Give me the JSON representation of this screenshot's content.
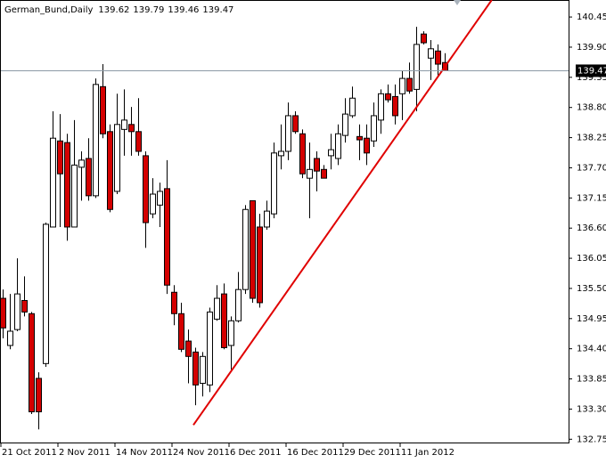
{
  "chart_data": {
    "type": "candlestick",
    "title": "German_Bund,Daily",
    "categories": [
      "21 Oct 2011",
      null,
      null,
      null,
      null,
      null,
      null,
      null,
      "2 Nov 2011",
      null,
      null,
      null,
      null,
      null,
      null,
      null,
      "14 Nov 2011",
      null,
      null,
      null,
      null,
      null,
      null,
      null,
      "24 Nov 2011",
      null,
      null,
      null,
      null,
      null,
      null,
      null,
      "6 Dec 2011",
      null,
      null,
      null,
      null,
      null,
      null,
      null,
      "16 Dec 2011",
      null,
      null,
      null,
      null,
      null,
      null,
      null,
      "29 Dec 2011",
      null,
      null,
      null,
      null,
      null,
      null,
      null,
      "11 Jan 2012",
      null,
      null,
      null,
      null,
      null,
      null
    ],
    "open": [
      135.32,
      134.46,
      134.75,
      135.28,
      135.04,
      133.86,
      134.13,
      136.62,
      138.19,
      138.16,
      136.62,
      137.71,
      137.87,
      137.19,
      139.18,
      138.36,
      137.27,
      138.4,
      138.49,
      138.36,
      137.92,
      136.86,
      137.02,
      137.32,
      135.43,
      135.04,
      134.54,
      134.34,
      133.77,
      133.74,
      134.94,
      135.4,
      134.46,
      134.91,
      135.48,
      137.1,
      136.62,
      136.62,
      136.86,
      137.92,
      138.0,
      138.65,
      138.32,
      137.51,
      137.87,
      137.67,
      137.92,
      137.87,
      138.29,
      138.65,
      138.27,
      138.24,
      138.19,
      138.57,
      139.05,
      139.0,
      139.05,
      139.33,
      139.13,
      140.14,
      139.7,
      139.83,
      139.62
    ],
    "high": [
      135.48,
      135.4,
      136.05,
      135.72,
      135.07,
      133.97,
      136.7,
      138.73,
      138.68,
      138.32,
      138.57,
      138.0,
      138.24,
      139.33,
      139.59,
      138.49,
      139.05,
      139.13,
      138.81,
      138.97,
      138.0,
      137.51,
      137.43,
      137.84,
      135.56,
      135.24,
      134.75,
      134.42,
      134.34,
      135.15,
      135.56,
      135.59,
      134.99,
      135.8,
      137.02,
      137.1,
      136.86,
      137.1,
      138.16,
      138.49,
      138.89,
      138.73,
      138.4,
      138.16,
      138.0,
      137.75,
      138.32,
      138.49,
      138.97,
      139.18,
      138.49,
      138.49,
      138.89,
      139.13,
      139.22,
      139.22,
      139.46,
      139.62,
      140.27,
      140.19,
      140.03,
      139.95,
      139.79
    ],
    "low": [
      134.59,
      134.39,
      134.72,
      134.99,
      133.21,
      132.93,
      134.07,
      136.62,
      136.62,
      136.37,
      136.62,
      137.1,
      137.1,
      137.15,
      138.24,
      136.89,
      137.22,
      137.92,
      137.92,
      137.92,
      136.24,
      136.78,
      136.62,
      135.4,
      134.83,
      134.34,
      133.77,
      133.37,
      133.53,
      133.61,
      134.91,
      134.39,
      134.02,
      134.88,
      135.4,
      135.24,
      135.15,
      136.57,
      136.78,
      137.67,
      137.84,
      138.32,
      137.51,
      136.78,
      137.27,
      137.51,
      137.67,
      137.75,
      138.16,
      138.61,
      137.84,
      137.75,
      138.08,
      138.32,
      138.89,
      138.49,
      138.57,
      139.05,
      138.73,
      139.95,
      139.3,
      139.38,
      139.46
    ],
    "close": [
      134.78,
      134.72,
      135.4,
      135.07,
      133.25,
      133.25,
      136.67,
      138.24,
      137.59,
      136.62,
      137.75,
      137.84,
      137.19,
      139.22,
      138.32,
      136.94,
      138.49,
      138.57,
      138.36,
      138.0,
      136.7,
      137.22,
      137.27,
      135.56,
      135.04,
      134.39,
      134.26,
      133.74,
      134.26,
      135.07,
      135.32,
      134.42,
      134.91,
      135.48,
      136.94,
      135.32,
      135.24,
      136.91,
      137.97,
      138.0,
      138.65,
      138.36,
      137.59,
      137.67,
      137.64,
      137.51,
      138.03,
      138.32,
      138.68,
      138.97,
      138.21,
      137.97,
      138.65,
      139.05,
      138.94,
      138.65,
      139.33,
      139.1,
      139.95,
      139.98,
      139.87,
      139.59,
      139.47
    ],
    "up_color": "#ffffff",
    "down_color": "#d40000",
    "ylim": [
      132.69,
      140.76
    ],
    "yticks": [
      140.45,
      {
        "value": 139.9,
        "label": "139.90"
      },
      139.35,
      {
        "value": 138.8,
        "label": "138.80"
      },
      138.25,
      {
        "value": 137.7,
        "label": "137.70"
      },
      137.15,
      {
        "value": 136.6,
        "label": "136.60"
      },
      136.05,
      {
        "value": 135.5,
        "label": "135.50"
      },
      134.95,
      {
        "value": 134.4,
        "label": "134.40"
      },
      133.85,
      {
        "value": 133.3,
        "label": "133.30"
      },
      132.75
    ],
    "trendline": {
      "x": [
        26.75,
        68.6
      ],
      "y": [
        133.01,
        140.76
      ],
      "color": "#e00000"
    },
    "price_line_color": "#8c9aa6",
    "grid": false
  }
}
